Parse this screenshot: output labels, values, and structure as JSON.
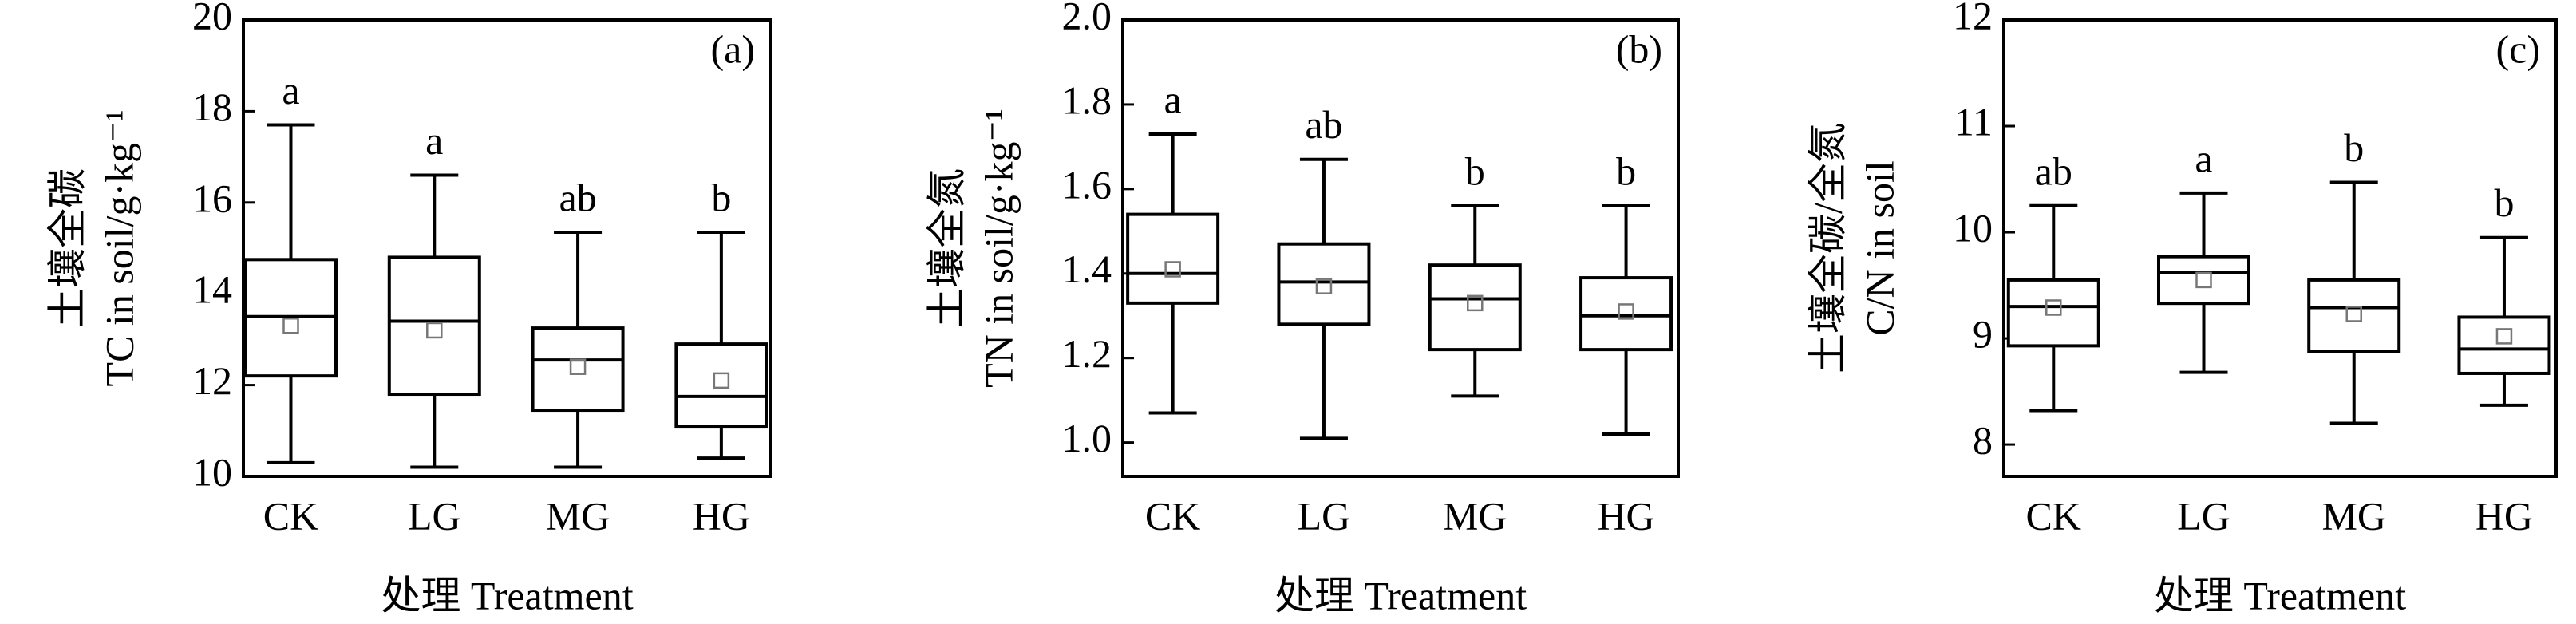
{
  "chart_data": [
    {
      "type": "box",
      "panel_label": "(a)",
      "ylabel": [
        "土壤全碳",
        "TC in soil/g·kg⁻¹"
      ],
      "xlabel": "处理 Treatment",
      "categories": [
        "CK",
        "LG",
        "MG",
        "HG"
      ],
      "color": "#000000",
      "boxes": [
        {
          "min": 10.3,
          "q1": 12.2,
          "median": 13.5,
          "q3": 14.75,
          "max": 17.7,
          "mean": 13.3
        },
        {
          "min": 10.2,
          "q1": 11.8,
          "median": 13.4,
          "q3": 14.8,
          "max": 16.6,
          "mean": 13.2
        },
        {
          "min": 10.2,
          "q1": 11.45,
          "median": 12.55,
          "q3": 13.25,
          "max": 15.35,
          "mean": 12.4
        },
        {
          "min": 10.4,
          "q1": 11.1,
          "median": 11.75,
          "q3": 12.9,
          "max": 15.35,
          "mean": 12.1
        }
      ],
      "letters": [
        "a",
        "a",
        "ab",
        "b"
      ],
      "ylim": [
        10,
        20
      ],
      "yticks": [
        10,
        12,
        14,
        16,
        18,
        20
      ]
    },
    {
      "type": "box",
      "panel_label": "(b)",
      "ylabel": [
        "土壤全氮",
        "TN in soil/g·kg⁻¹"
      ],
      "xlabel": "处理 Treatment",
      "categories": [
        "CK",
        "LG",
        "MG",
        "HG"
      ],
      "color": "#000000",
      "boxes": [
        {
          "min": 1.07,
          "q1": 1.33,
          "median": 1.4,
          "q3": 1.54,
          "max": 1.73,
          "mean": 1.41
        },
        {
          "min": 1.01,
          "q1": 1.28,
          "median": 1.38,
          "q3": 1.47,
          "max": 1.67,
          "mean": 1.37
        },
        {
          "min": 1.11,
          "q1": 1.22,
          "median": 1.34,
          "q3": 1.42,
          "max": 1.56,
          "mean": 1.33
        },
        {
          "min": 1.02,
          "q1": 1.22,
          "median": 1.3,
          "q3": 1.39,
          "max": 1.56,
          "mean": 1.31
        }
      ],
      "letters": [
        "a",
        "ab",
        "b",
        "b"
      ],
      "ylim": [
        0.92,
        2.0
      ],
      "yticks": [
        {
          "value": 1.0,
          "label": "1.0"
        },
        1.2,
        1.4,
        1.6,
        1.8,
        {
          "value": 2.0,
          "label": "2.0"
        }
      ]
    },
    {
      "type": "box",
      "panel_label": "(c)",
      "ylabel": [
        "土壤全碳/全氮",
        "C/N in soil"
      ],
      "xlabel": "处理 Treatment",
      "categories": [
        "CK",
        "LG",
        "MG",
        "HG"
      ],
      "color": "#000000",
      "boxes": [
        {
          "min": 8.32,
          "q1": 8.93,
          "median": 9.3,
          "q3": 9.55,
          "max": 10.25,
          "mean": 9.29
        },
        {
          "min": 8.68,
          "q1": 9.33,
          "median": 9.62,
          "q3": 9.77,
          "max": 10.37,
          "mean": 9.55
        },
        {
          "min": 8.2,
          "q1": 8.88,
          "median": 9.29,
          "q3": 9.55,
          "max": 10.47,
          "mean": 9.23
        },
        {
          "min": 8.37,
          "q1": 8.67,
          "median": 8.9,
          "q3": 9.2,
          "max": 9.95,
          "mean": 9.02
        }
      ],
      "letters": [
        "ab",
        "a",
        "b",
        "b"
      ],
      "ylim": [
        7.7,
        12
      ],
      "yticks": [
        8,
        9,
        10,
        11,
        12
      ]
    }
  ]
}
